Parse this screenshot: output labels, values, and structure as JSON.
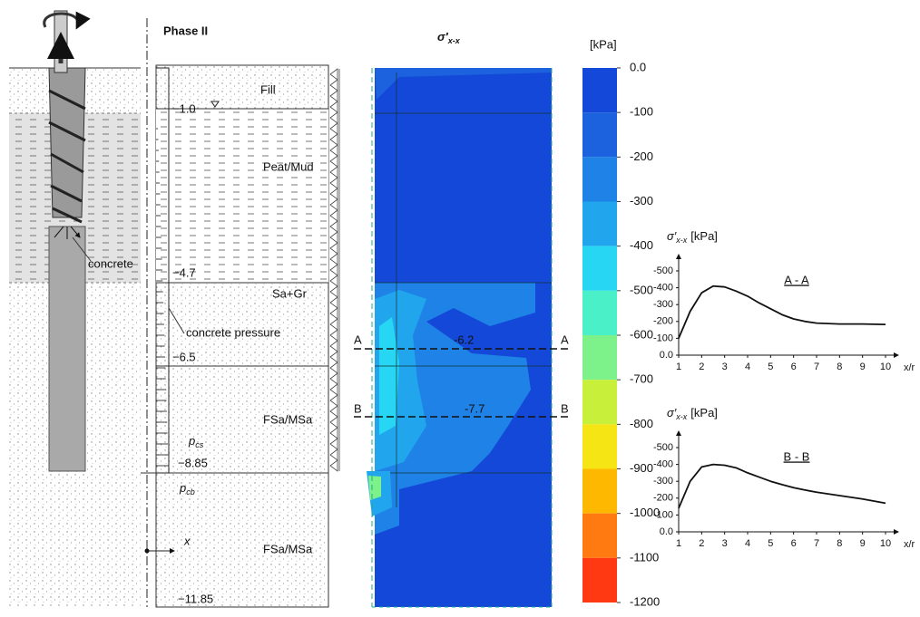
{
  "left_figure": {
    "label": "concrete"
  },
  "phase_figure": {
    "title": "Phase II",
    "layers": [
      "Fill",
      "Peat/Mud",
      "Sa+Gr",
      "FSa/MSa",
      "FSa/MSa"
    ],
    "depths": [
      "−1.0",
      "−4.7",
      "−6.5",
      "−8.85",
      "−11.85"
    ],
    "concrete_pressure": "concrete pressure",
    "pressure_labels": [
      {
        "base": "p",
        "sub": "cs"
      },
      {
        "base": "p",
        "sub": "cb"
      }
    ],
    "axis_label": "x"
  },
  "contour": {
    "title": {
      "base": "σ′",
      "sub": "x-x"
    },
    "sections": [
      {
        "name": "A",
        "level": "-6.2"
      },
      {
        "name": "B",
        "level": "-7.7"
      }
    ]
  },
  "colorbar": {
    "unit": "[kPa]",
    "ticks": [
      {
        "value": 0,
        "label": "0.0"
      },
      -100,
      -200,
      -300,
      -400,
      -500,
      -600,
      -700,
      -800,
      -900,
      -1000,
      -1100,
      -1200
    ],
    "colors": [
      "#1448d8",
      "#1c62df",
      "#1f82e6",
      "#21a6ee",
      "#27d6f2",
      "#4af0c8",
      "#7ef28a",
      "#c8f03a",
      "#f6e514",
      "#ffb800",
      "#ff7a10",
      "#ff3a12"
    ]
  },
  "chart_data": [
    {
      "type": "line",
      "title": "A - A",
      "ylabel": {
        "base": "σ′",
        "sub": "x-x",
        "unit": "[kPa]"
      },
      "xlabel": "x/r",
      "x": [
        1,
        1.5,
        2,
        2.5,
        3,
        3.5,
        4,
        4.5,
        5,
        5.5,
        6,
        6.5,
        7,
        8,
        9,
        10
      ],
      "series": [
        {
          "color": "#111111",
          "values": [
            -100,
            -260,
            -370,
            -410,
            -405,
            -380,
            -350,
            -310,
            -275,
            -240,
            -215,
            -200,
            -190,
            -185,
            -185,
            -182
          ]
        }
      ],
      "xlim": [
        1,
        10
      ],
      "xticks": [
        1,
        2,
        3,
        4,
        5,
        6,
        7,
        8,
        9,
        10
      ],
      "ylim": [
        0,
        -500
      ],
      "yticks": [
        {
          "value": 0,
          "label": "0.0"
        },
        -100,
        -200,
        -300,
        -400,
        -500
      ]
    },
    {
      "type": "line",
      "title": "B - B",
      "ylabel": {
        "base": "σ′",
        "sub": "x-x",
        "unit": "[kPa]"
      },
      "xlabel": "x/r",
      "x": [
        1,
        1.5,
        2,
        2.5,
        3,
        3.5,
        4,
        4.5,
        5,
        5.5,
        6,
        6.5,
        7,
        8,
        9,
        10
      ],
      "series": [
        {
          "color": "#111111",
          "values": [
            -140,
            -300,
            -385,
            -400,
            -395,
            -380,
            -350,
            -325,
            -300,
            -280,
            -262,
            -248,
            -235,
            -215,
            -195,
            -170
          ]
        }
      ],
      "xlim": [
        1,
        10
      ],
      "xticks": [
        1,
        2,
        3,
        4,
        5,
        6,
        7,
        8,
        9,
        10
      ],
      "ylim": [
        0,
        -500
      ],
      "yticks": [
        {
          "value": 0,
          "label": "0.0"
        },
        -100,
        -200,
        -300,
        -400,
        -500
      ]
    }
  ]
}
